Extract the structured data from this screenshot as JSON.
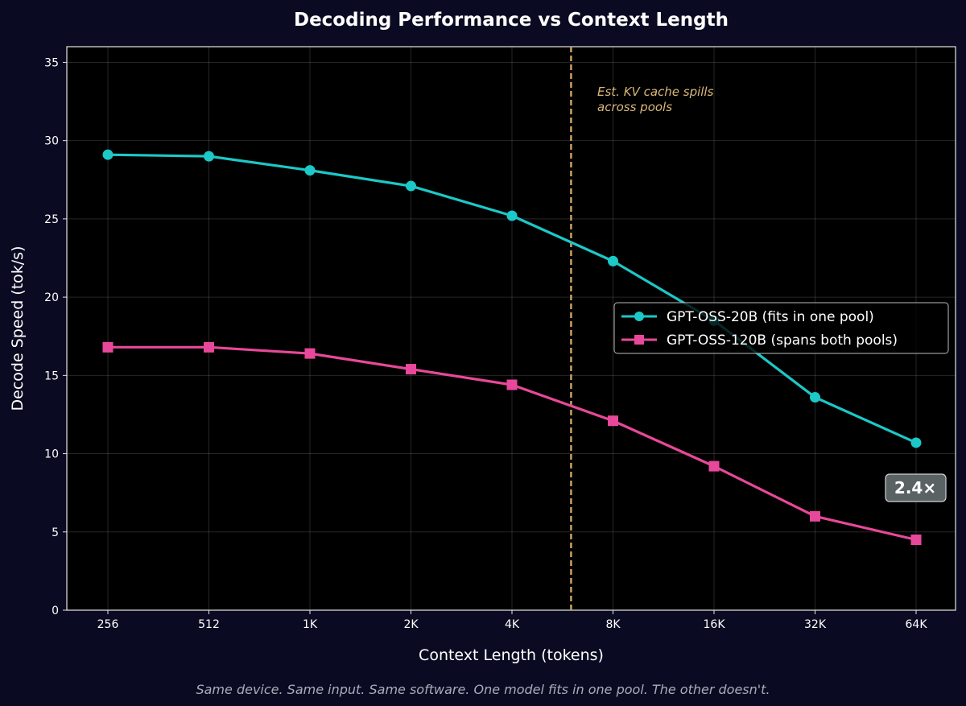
{
  "chart_data": {
    "type": "line",
    "title": "Decoding Performance vs Context Length",
    "xlabel": "Context Length (tokens)",
    "ylabel": "Decode Speed (tok/s)",
    "categories": [
      "256",
      "512",
      "1K",
      "2K",
      "4K",
      "8K",
      "16K",
      "32K",
      "64K"
    ],
    "x_scale": "log2",
    "ylim": [
      0,
      36
    ],
    "yticks": [
      0,
      5,
      10,
      15,
      20,
      25,
      30,
      35
    ],
    "grid": true,
    "legend_placement": "center-right",
    "series": [
      {
        "name": "GPT-OSS-20B (fits in one pool)",
        "color": "#1cc8c8",
        "marker": "circle",
        "values": [
          29.1,
          29.0,
          28.1,
          27.1,
          25.2,
          22.3,
          18.5,
          13.6,
          10.7
        ]
      },
      {
        "name": "GPT-OSS-120B (spans both pools)",
        "color": "#e8489a",
        "marker": "square",
        "values": [
          16.8,
          16.8,
          16.4,
          15.4,
          14.4,
          12.1,
          9.2,
          6.0,
          4.5
        ]
      }
    ],
    "vline": {
      "x": "6K",
      "color": "#c9a062",
      "style": "dashed"
    },
    "annotations": {
      "vline_note": [
        "Est. KV cache spills",
        "across pools"
      ],
      "ratio_badge": "2.4×"
    },
    "caption": "Same device. Same input. Same software. One model fits in one pool. The other doesn't."
  }
}
